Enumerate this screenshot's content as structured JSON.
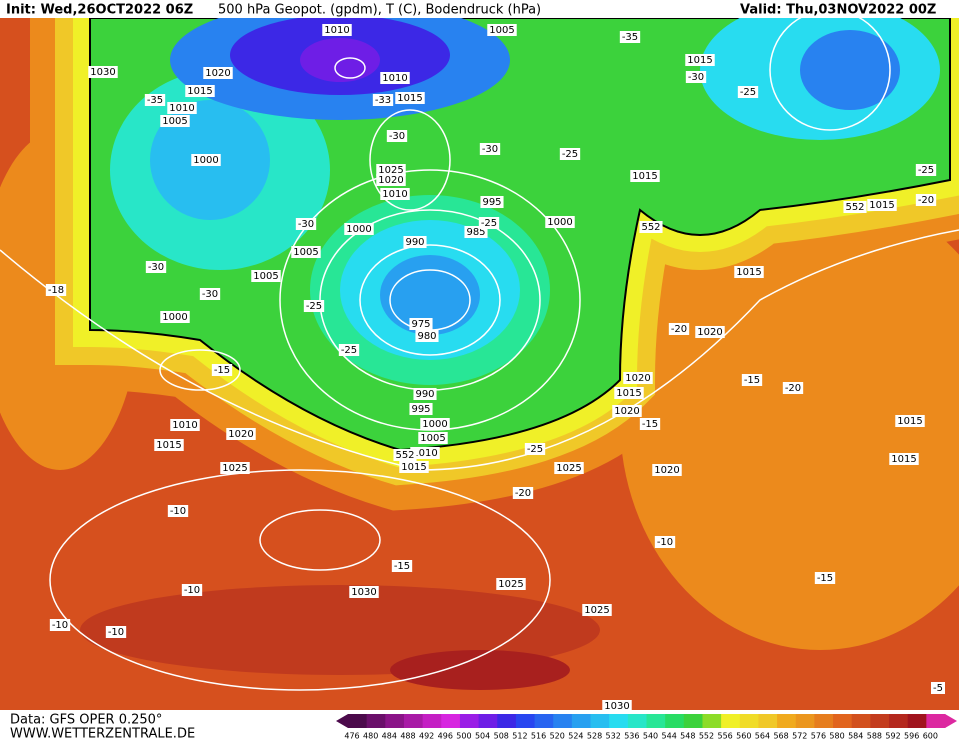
{
  "header": {
    "init": "Init: Wed,26OCT2022 06Z",
    "title": "500 hPa Geopot. (gpdm), T (C), Bodendruck (hPa)",
    "valid": "Valid: Thu,03NOV2022 00Z"
  },
  "footer": {
    "data_source": "Data: GFS OPER 0.250°",
    "website": "WWW.WETTERZENTRALE.DE"
  },
  "colorbar": {
    "values": [
      476,
      480,
      484,
      488,
      492,
      496,
      500,
      504,
      508,
      512,
      516,
      520,
      524,
      528,
      532,
      536,
      540,
      544,
      548,
      552,
      556,
      560,
      564,
      568,
      572,
      576,
      580,
      584,
      588,
      592,
      596,
      600
    ],
    "colors": [
      "#4b0a4b",
      "#6a0f6a",
      "#8a1488",
      "#a81aa6",
      "#c41fc4",
      "#d726e0",
      "#9a1ee6",
      "#6e1ee6",
      "#3c28e6",
      "#2846f0",
      "#2864f0",
      "#2882f0",
      "#28a0f0",
      "#28bef0",
      "#28dcf0",
      "#28e6c8",
      "#28e696",
      "#28dc64",
      "#3cd23c",
      "#8cdc28",
      "#f0f028",
      "#f0dc28",
      "#f0c828",
      "#f0aa1e",
      "#eb961e",
      "#e67d1e",
      "#e1641e",
      "#d2501e",
      "#c33c1e",
      "#b4281e",
      "#a0141e",
      "#dc28a0"
    ]
  },
  "map_labels": [
    "1010",
    "1005",
    "1030",
    "1020",
    "1015",
    "1010",
    "1005",
    "1000",
    "1010",
    "1015",
    "1025",
    "1020",
    "1010",
    "995",
    "1000",
    "990",
    "985",
    "1000",
    "1005",
    "1005",
    "1000",
    "975",
    "980",
    "990",
    "995",
    "1000",
    "1005",
    "1010",
    "1015",
    "1010",
    "1015",
    "1020",
    "1025",
    "1030",
    "1025",
    "1025",
    "1025",
    "1020",
    "1020",
    "1015",
    "1020",
    "1015",
    "1015",
    "1015",
    "1020",
    "1015",
    "1015",
    "1015",
    "552",
    "552",
    "552",
    "-35",
    "-30",
    "-25",
    "-25",
    "-30",
    "-30",
    "-33",
    "-35",
    "-30",
    "-30",
    "-30",
    "-25",
    "-25",
    "-25",
    "-18",
    "-20",
    "-15",
    "-15",
    "-20",
    "-15",
    "-25",
    "-20",
    "-15",
    "-10",
    "-10",
    "-10",
    "-10",
    "-10",
    "-15",
    "-25",
    "-20",
    "-5",
    "1030"
  ]
}
